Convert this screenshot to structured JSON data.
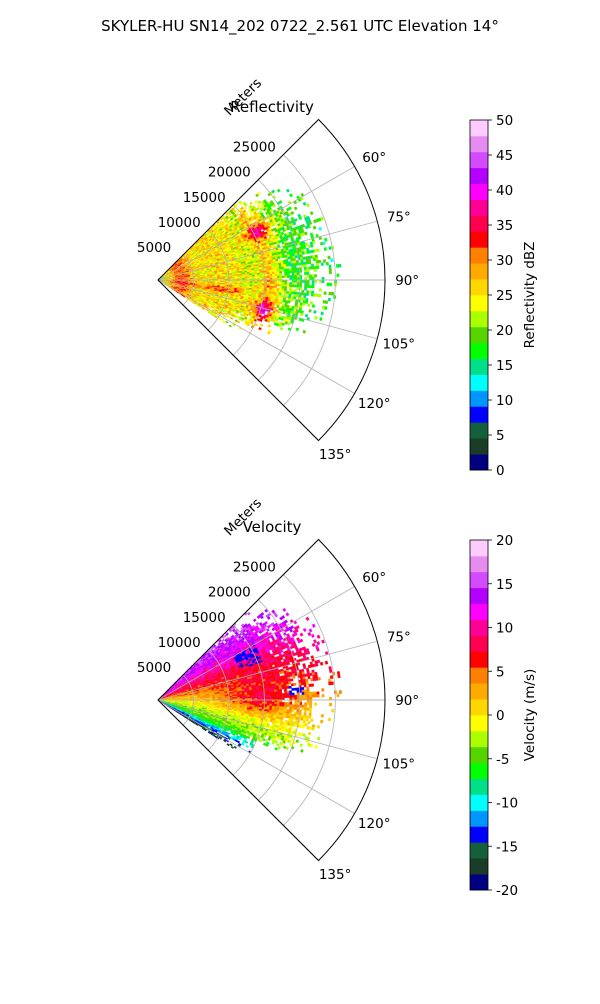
{
  "figure": {
    "suptitle": "SKYLER-HU  SN14_202  0722_2.561 UTC Elevation 14°"
  },
  "chart_data": [
    {
      "type": "heatmap",
      "subtype": "polar-ppi-sector",
      "title": "Reflectivity",
      "range_label": "Meters",
      "range_ticks": [
        5000,
        10000,
        15000,
        20000,
        25000
      ],
      "range_max": 32000,
      "azimuth_ticks_deg": [
        60,
        75,
        90,
        105,
        120,
        135
      ],
      "azimuth_tick_labels": [
        "60°",
        "75°",
        "90°",
        "105°",
        "120°",
        "135°"
      ],
      "azimuth_range_deg": [
        45,
        135
      ],
      "data_azimuth_range_deg": [
        45,
        123
      ],
      "data_max_range_m": 22000,
      "colorbar": {
        "label": "Reflectivity dBZ",
        "min": 0,
        "max": 50,
        "ticks": [
          0,
          5,
          10,
          15,
          20,
          25,
          30,
          35,
          40,
          45,
          50
        ],
        "colors": [
          "#000080",
          "#1a3c28",
          "#14603c",
          "#0000ff",
          "#0096ff",
          "#00ffff",
          "#00e08a",
          "#00ff00",
          "#55d400",
          "#aaff00",
          "#ffff00",
          "#ffd700",
          "#ffaa00",
          "#ff7f00",
          "#ff0000",
          "#ff0050",
          "#ff0096",
          "#ff00ff",
          "#b400ff",
          "#d24bff",
          "#e68cf0",
          "#ffccff"
        ]
      },
      "description_scale": "mostly 20-30 dBZ with rings of 30-38 dBZ"
    },
    {
      "type": "heatmap",
      "subtype": "polar-ppi-sector",
      "title": "Velocity",
      "range_label": "Meters",
      "range_ticks": [
        5000,
        10000,
        15000,
        20000,
        25000
      ],
      "range_max": 32000,
      "azimuth_ticks_deg": [
        60,
        75,
        90,
        105,
        120,
        135
      ],
      "azimuth_tick_labels": [
        "60°",
        "75°",
        "90°",
        "105°",
        "120°",
        "135°"
      ],
      "azimuth_range_deg": [
        45,
        135
      ],
      "data_azimuth_range_deg": [
        45,
        123
      ],
      "data_max_range_m": 22000,
      "colorbar": {
        "label": "Velocity (m/s)",
        "min": -20,
        "max": 20,
        "ticks": [
          -20,
          -15,
          -10,
          -5,
          0,
          5,
          10,
          15,
          20
        ],
        "colors": [
          "#000080",
          "#1a3c28",
          "#14603c",
          "#0000ff",
          "#0096ff",
          "#00ffff",
          "#00e08a",
          "#00ff00",
          "#55d400",
          "#aaff00",
          "#ffff00",
          "#ffd700",
          "#ffaa00",
          "#ff7f00",
          "#ff0000",
          "#ff0050",
          "#ff0096",
          "#ff00ff",
          "#b400ff",
          "#d24bff",
          "#e68cf0",
          "#ffccff"
        ]
      }
    }
  ]
}
